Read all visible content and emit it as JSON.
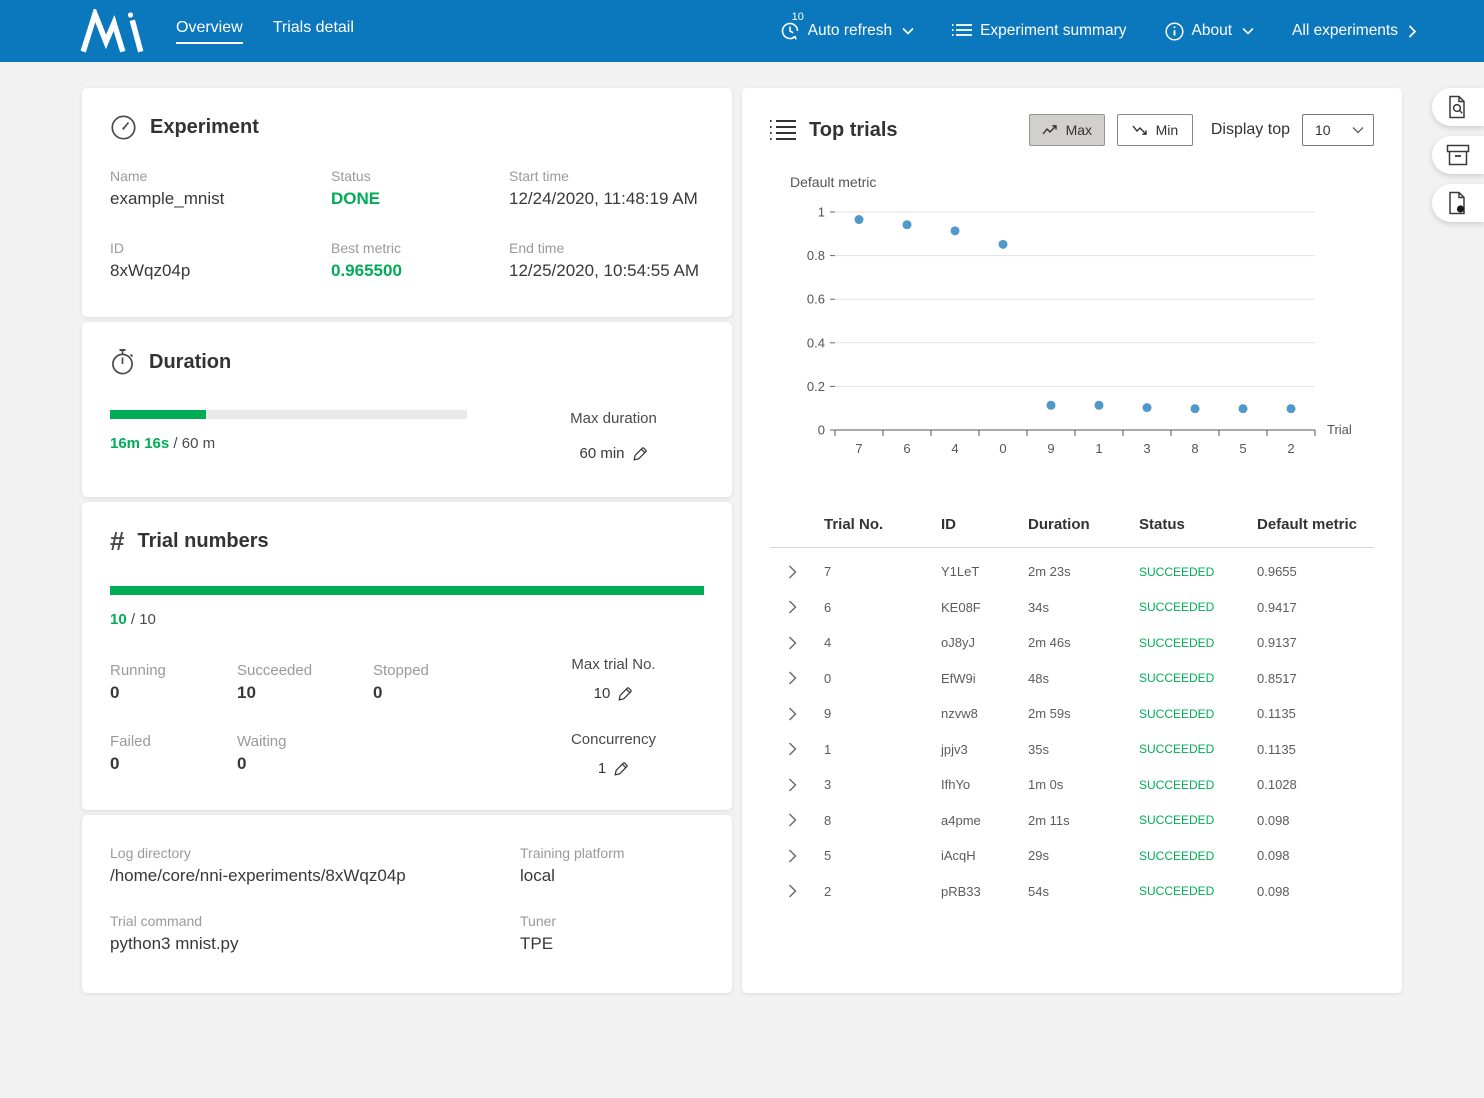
{
  "colors": {
    "navbar_blue": "#0b77bd",
    "accent_green": "#00ad56",
    "chart_dot_blue": "#4f9ac9",
    "page_background": "#f2f2f2",
    "selected_button_bg": "#d2d0ce"
  },
  "navbar": {
    "tabs": [
      {
        "label": "Overview"
      },
      {
        "label": "Trials detail"
      }
    ],
    "auto_refresh": {
      "label": "Auto refresh",
      "badge": "10"
    },
    "experiment_summary_label": "Experiment summary",
    "about_label": "About",
    "all_experiments_label": "All experiments"
  },
  "experiment_card": {
    "title": "Experiment",
    "fields": [
      {
        "label": "Name",
        "value": "example_mnist"
      },
      {
        "label": "Status",
        "value": "DONE"
      },
      {
        "label": "Start time",
        "value": "12/24/2020, 11:48:19 AM"
      },
      {
        "label": "ID",
        "value": "8xWqz04p"
      },
      {
        "label": "Best metric",
        "value": "0.965500"
      },
      {
        "label": "End time",
        "value": "12/25/2020, 10:54:55 AM"
      }
    ]
  },
  "duration_card": {
    "title": "Duration",
    "progress_percent": 27,
    "elapsed": "16m 16s",
    "total": " / 60 m",
    "max_duration_label": "Max duration",
    "max_duration_value": "60 min"
  },
  "trial_numbers_card": {
    "title": "Trial numbers",
    "progress_percent": 100,
    "done": "10",
    "total": " / 10",
    "stats": [
      {
        "label": "Running",
        "value": "0"
      },
      {
        "label": "Succeeded",
        "value": "10"
      },
      {
        "label": "Stopped",
        "value": "0"
      },
      {
        "label": "Failed",
        "value": "0"
      },
      {
        "label": "Waiting",
        "value": "0"
      }
    ],
    "max_trial_label": "Max trial No.",
    "max_trial_value": "10",
    "concurrency_label": "Concurrency",
    "concurrency_value": "1"
  },
  "config_card": {
    "fields": [
      {
        "label": "Log directory",
        "value": "/home/core/nni-experiments/8xWqz04p"
      },
      {
        "label": "Training platform",
        "value": "local"
      },
      {
        "label": "Trial command",
        "value": "python3 mnist.py"
      },
      {
        "label": "Tuner",
        "value": "TPE"
      }
    ]
  },
  "top_trials": {
    "title": "Top trials",
    "max_button_label": "Max",
    "min_button_label": "Min",
    "display_top_label": "Display top",
    "display_top_value": "10",
    "table": {
      "headers": [
        "Trial No.",
        "ID",
        "Duration",
        "Status",
        "Default metric"
      ],
      "rows": [
        {
          "no": "7",
          "id": "Y1LeT",
          "duration": "2m 23s",
          "status": "SUCCEEDED",
          "metric": "0.9655"
        },
        {
          "no": "6",
          "id": "KE08F",
          "duration": "34s",
          "status": "SUCCEEDED",
          "metric": "0.9417"
        },
        {
          "no": "4",
          "id": "oJ8yJ",
          "duration": "2m 46s",
          "status": "SUCCEEDED",
          "metric": "0.9137"
        },
        {
          "no": "0",
          "id": "EfW9i",
          "duration": "48s",
          "status": "SUCCEEDED",
          "metric": "0.8517"
        },
        {
          "no": "9",
          "id": "nzvw8",
          "duration": "2m 59s",
          "status": "SUCCEEDED",
          "metric": "0.1135"
        },
        {
          "no": "1",
          "id": "jpjv3",
          "duration": "35s",
          "status": "SUCCEEDED",
          "metric": "0.1135"
        },
        {
          "no": "3",
          "id": "IfhYo",
          "duration": "1m 0s",
          "status": "SUCCEEDED",
          "metric": "0.1028"
        },
        {
          "no": "8",
          "id": "a4pme",
          "duration": "2m 11s",
          "status": "SUCCEEDED",
          "metric": "0.098"
        },
        {
          "no": "5",
          "id": "iAcqH",
          "duration": "29s",
          "status": "SUCCEEDED",
          "metric": "0.098"
        },
        {
          "no": "2",
          "id": "pRB33",
          "duration": "54s",
          "status": "SUCCEEDED",
          "metric": "0.098"
        }
      ]
    }
  },
  "chart_data": {
    "type": "scatter",
    "title": "Default metric",
    "xlabel": "Trial",
    "ylabel": "Default metric",
    "categories": [
      "7",
      "6",
      "4",
      "0",
      "9",
      "1",
      "3",
      "8",
      "5",
      "2"
    ],
    "values": [
      0.9655,
      0.9417,
      0.9137,
      0.8517,
      0.1135,
      0.1135,
      0.1028,
      0.098,
      0.098,
      0.098
    ],
    "ylim": [
      0,
      1
    ],
    "yticks": [
      0,
      0.2,
      0.4,
      0.6,
      0.8,
      1
    ],
    "ytick_labels": [
      "0",
      "0.2",
      "0.4",
      "0.6",
      "0.8",
      "1"
    ],
    "grid": true,
    "legend": "none",
    "point_color": "#4f9ac9"
  },
  "side_buttons": [
    {
      "icon": "file-search-icon"
    },
    {
      "icon": "archive-box-icon"
    },
    {
      "icon": "file-dot-icon"
    }
  ]
}
